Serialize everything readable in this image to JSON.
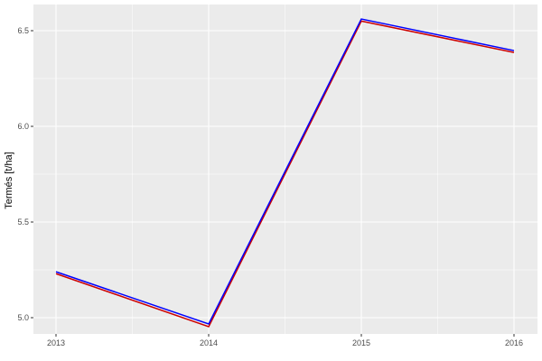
{
  "chart_data": {
    "type": "line",
    "title": "",
    "xlabel": "",
    "ylabel": "Termés [t/ha]",
    "x": [
      2013,
      2014,
      2015,
      2016
    ],
    "x_tick_labels": [
      "2013",
      "2014",
      "2015",
      "2016"
    ],
    "y_ticks": [
      5.0,
      5.5,
      6.0,
      6.5
    ],
    "y_tick_labels": [
      "5.0",
      "5.5",
      "6.0",
      "6.5"
    ],
    "xlim": [
      2012.85,
      2016.15
    ],
    "ylim": [
      4.92,
      6.6
    ],
    "grid": true,
    "legend": "none",
    "series": [
      {
        "color": "#cc0000",
        "values": [
          5.23,
          4.953,
          6.55,
          6.386
        ]
      },
      {
        "color": "#0000ff",
        "values": [
          5.24,
          4.967,
          6.561,
          6.396
        ]
      }
    ],
    "panel_background": "#ebebeb",
    "grid_color": "#ffffff"
  }
}
